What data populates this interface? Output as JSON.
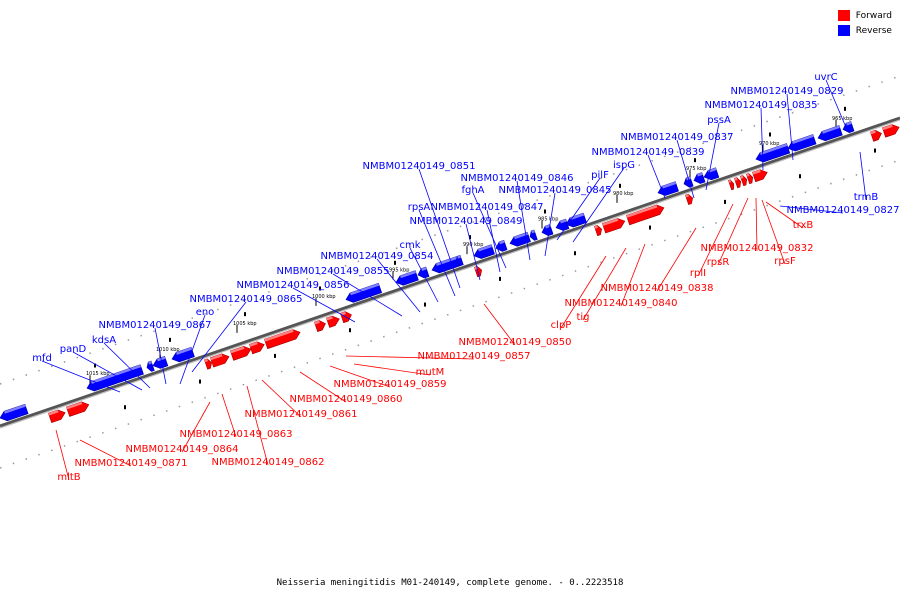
{
  "caption": "Neisseria meningitidis M01-240149, complete genome. - 0..2223518",
  "legend": [
    {
      "label": "Forward",
      "color": "#ff0000"
    },
    {
      "label": "Reverse",
      "color": "#0000ff"
    }
  ],
  "colors": {
    "forward": "#ff0000",
    "reverse": "#0000ff",
    "track": "#8a8a8a"
  },
  "ticks": [
    "1015 kbp",
    "1010 kbp",
    "1005 kbp",
    "1000 kbp",
    "995 kbp",
    "990 kbp",
    "985 kbp",
    "980 kbp",
    "975 kbp",
    "970 kbp",
    "965 kbp"
  ],
  "reverse_labels": [
    "mfd",
    "panD",
    "kdsA",
    "NMBM01240149_0867",
    "eno",
    "NMBM01240149_0865",
    "NMBM01240149_0856",
    "NMBM01240149_0855",
    "NMBM01240149_0854",
    "cmk",
    "NMBM01240149_0851",
    "rpsA",
    "NMBM01240149_0849",
    "NMBM01240149_0847",
    "fghA",
    "NMBM01240149_0846",
    "NMBM01240149_0845",
    "pilF",
    "ispG",
    "NMBM01240149_0839",
    "NMBM01240149_0837",
    "pssA",
    "NMBM01240149_0835",
    "NMBM01240149_0829",
    "uvrC",
    "trmB",
    "NMBM01240149_0827"
  ],
  "forward_labels": [
    "mltB",
    "NMBM01240149_0871",
    "NMBM01240149_0864",
    "NMBM01240149_0863",
    "NMBM01240149_0862",
    "NMBM01240149_0861",
    "NMBM01240149_0860",
    "NMBM01240149_0859",
    "mutM",
    "NMBM01240149_0857",
    "NMBM01240149_0850",
    "clpP",
    "tig",
    "NMBM01240149_0840",
    "NMBM01240149_0838",
    "rplI",
    "rpsR",
    "NMBM01240149_0832",
    "rpsF",
    "trxB"
  ]
}
